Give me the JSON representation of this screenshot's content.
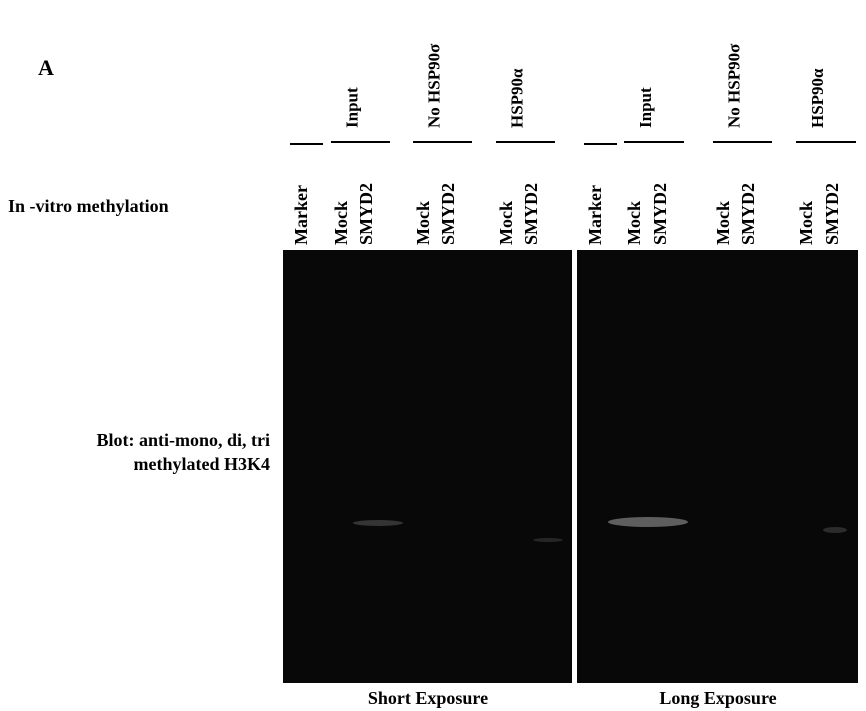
{
  "figure": {
    "panel_letter": "A",
    "row_labels": {
      "methylation": "In -vitro methylation",
      "blot_line1": "Blot: anti-mono, di, tri",
      "blot_line2": "methylated H3K4"
    },
    "exposures": [
      {
        "label": "Short Exposure",
        "marker": "Marker",
        "groups": [
          {
            "label": "Input",
            "lanes": [
              "Mock",
              "SMYD2"
            ]
          },
          {
            "label": "No HSP90σ",
            "lanes": [
              "Mock",
              "SMYD2"
            ]
          },
          {
            "label": "HSP90α",
            "lanes": [
              "Mock",
              "SMYD2"
            ]
          }
        ]
      },
      {
        "label": "Long Exposure",
        "marker": "Marker",
        "groups": [
          {
            "label": "Input",
            "lanes": [
              "Mock",
              "SMYD2"
            ]
          },
          {
            "label": "No HSP90σ",
            "lanes": [
              "Mock",
              "SMYD2"
            ]
          },
          {
            "label": "HSP90α",
            "lanes": [
              "Mock",
              "SMYD2"
            ]
          }
        ]
      }
    ]
  }
}
